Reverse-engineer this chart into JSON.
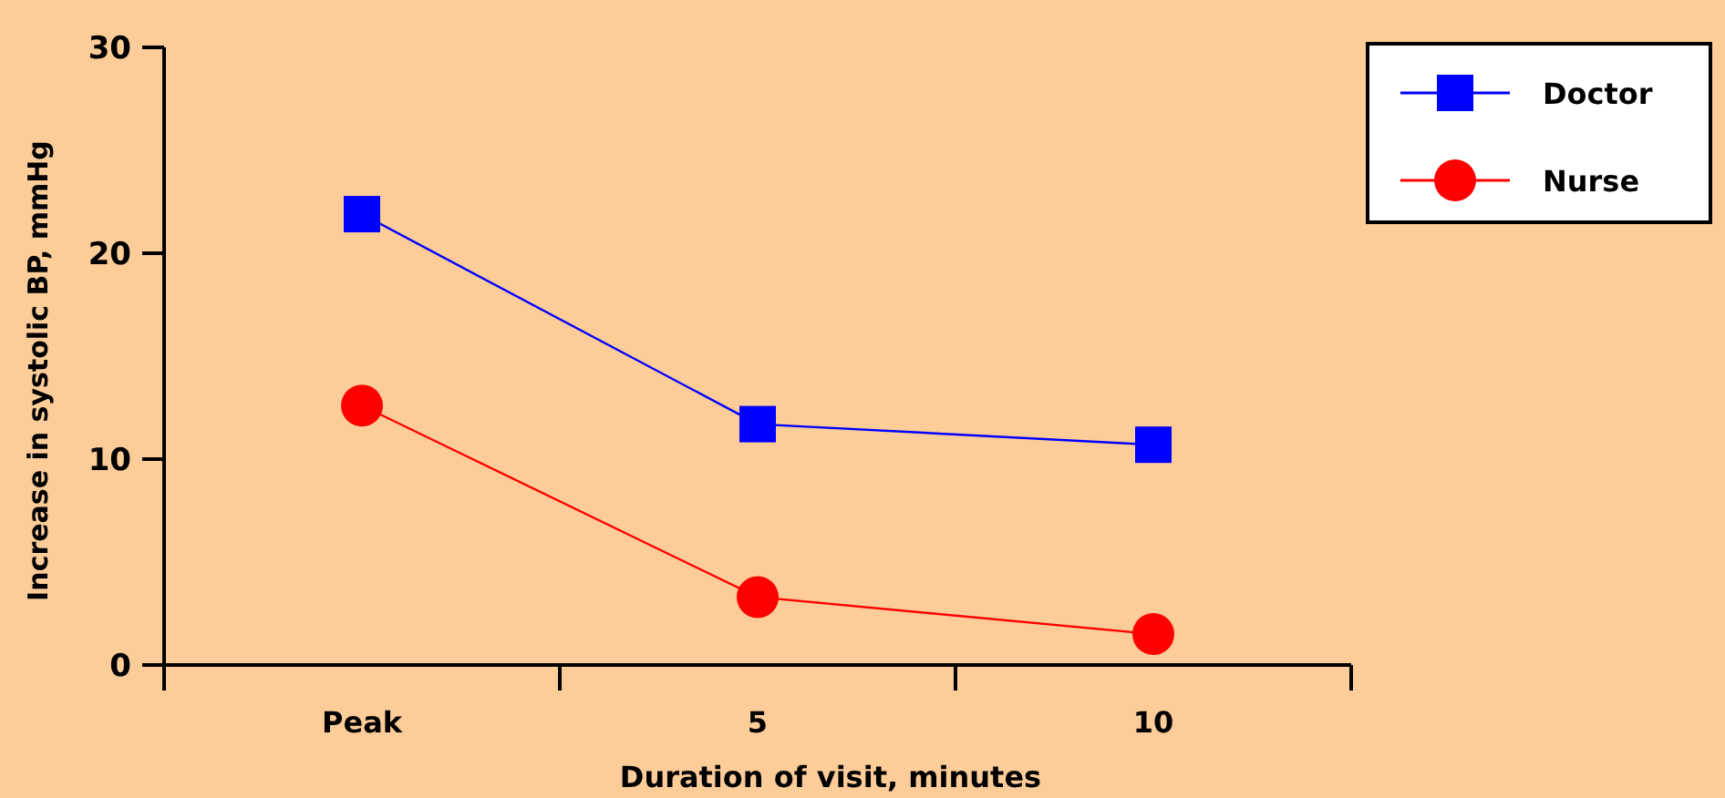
{
  "chart_data": {
    "type": "line",
    "xlabel": "Duration of visit, minutes",
    "ylabel": "Increase in systolic BP, mmHg",
    "categories": [
      "Peak",
      "5",
      "10"
    ],
    "ylim": [
      0,
      30
    ],
    "yticks": [
      0,
      10,
      20,
      30
    ],
    "legend": "top right",
    "grid": false,
    "series": [
      {
        "name": "Doctor",
        "color": "#0000ff",
        "marker": "square",
        "values": [
          21.9,
          11.7,
          10.7
        ]
      },
      {
        "name": "Nurse",
        "color": "#ff0000",
        "marker": "circle",
        "values": [
          12.6,
          3.3,
          1.5
        ]
      }
    ]
  }
}
